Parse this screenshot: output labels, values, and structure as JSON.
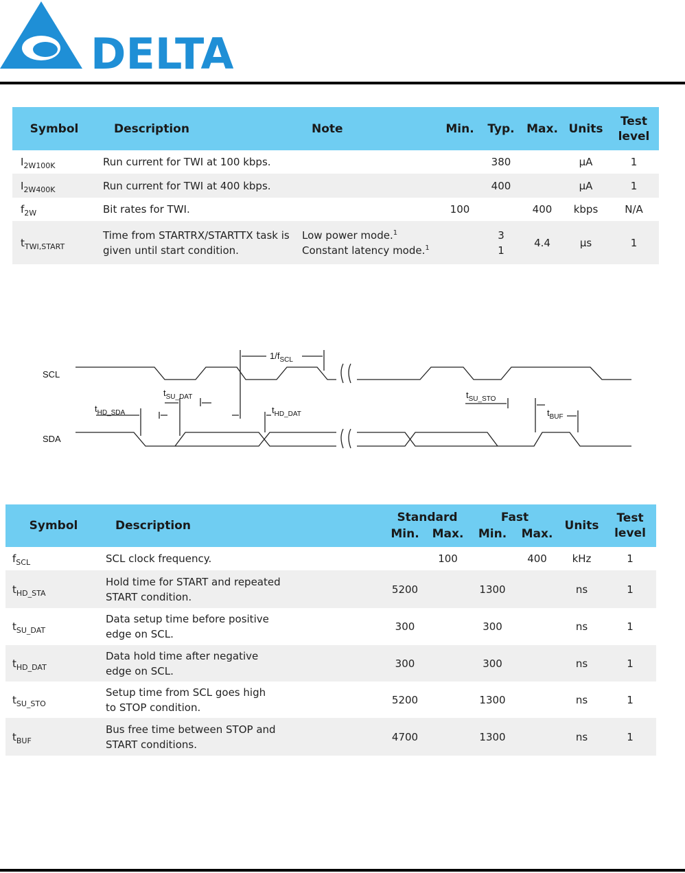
{
  "header": {
    "logo": "DELTA"
  },
  "table1": {
    "columns": [
      "Symbol",
      "Description",
      "Note",
      "Min.",
      "Typ.",
      "Max.",
      "Units",
      "Test level"
    ],
    "rows": [
      {
        "symbol": {
          "base": "I",
          "sub": "2W100K"
        },
        "description": "Run current for TWI at 100 kbps.",
        "typ": 380,
        "units": "µA",
        "test_level": 1
      },
      {
        "symbol": {
          "base": "I",
          "sub": "2W400K"
        },
        "description": "Run current for TWI at 400 kbps.",
        "typ": 400,
        "units": "µA",
        "test_level": 1
      },
      {
        "symbol": {
          "base": "f",
          "sub": "2W"
        },
        "description": "Bit rates for TWI.",
        "min": 100,
        "max": 400,
        "units": "kbps",
        "test_level": "N/A"
      },
      {
        "symbol": {
          "base": "t",
          "sub": "TWI,START"
        },
        "description": "Time from STARTRX/STARTTX task is given until start condition.",
        "note": [
          {
            "text": "Low power mode.",
            "sup": "1"
          },
          {
            "text": "Constant latency mode.",
            "sup": "1"
          }
        ],
        "typ": [
          3,
          1
        ],
        "max": 4.4,
        "units": "µs",
        "test_level": 1
      }
    ]
  },
  "diagram": {
    "scl": "SCL",
    "sda": "SDA",
    "labels": {
      "period": {
        "base": "1/f",
        "sub": "SCL"
      },
      "su_dat": {
        "base": "t",
        "sub": "SU_DAT"
      },
      "hd_sda": {
        "base": "t",
        "sub": "HD_SDA"
      },
      "hd_dat": {
        "base": "t",
        "sub": "HD_DAT"
      },
      "su_sto": {
        "base": "t",
        "sub": "SU_STO"
      },
      "buf": {
        "base": "t",
        "sub": "BUF"
      }
    }
  },
  "table2": {
    "columns": {
      "symbol": "Symbol",
      "description": "Description",
      "standard": "Standard",
      "fast": "Fast",
      "min": "Min.",
      "max": "Max.",
      "units": "Units",
      "test_level": "Test level"
    },
    "rows": [
      {
        "symbol": {
          "base": "f",
          "sub": "SCL"
        },
        "description": [
          "SCL clock frequency."
        ],
        "std_max": 100,
        "fast_max": 400,
        "units": "kHz",
        "test_level": 1
      },
      {
        "symbol": {
          "base": "t",
          "sub": "HD_STA"
        },
        "description": [
          "Hold time for START and repeated",
          "START condition."
        ],
        "std_min": 5200,
        "fast_min": 1300,
        "units": "ns",
        "test_level": 1
      },
      {
        "symbol": {
          "base": "t",
          "sub": "SU_DAT"
        },
        "description": [
          "Data setup time before positive",
          "edge on SCL."
        ],
        "std_min": 300,
        "fast_min": 300,
        "units": "ns",
        "test_level": 1
      },
      {
        "symbol": {
          "base": "t",
          "sub": "HD_DAT"
        },
        "description": [
          "Data hold time after negative",
          "edge on SCL."
        ],
        "std_min": 300,
        "fast_min": 300,
        "units": "ns",
        "test_level": 1
      },
      {
        "symbol": {
          "base": "t",
          "sub": "SU_STO"
        },
        "description": [
          "Setup time from SCL goes high",
          "to STOP condition."
        ],
        "std_min": 5200,
        "fast_min": 1300,
        "units": "ns",
        "test_level": 1
      },
      {
        "symbol": {
          "base": "t",
          "sub": "BUF"
        },
        "description": [
          "Bus free time between STOP and",
          "START conditions."
        ],
        "std_min": 4700,
        "fast_min": 1300,
        "units": "ns",
        "test_level": 1
      }
    ]
  }
}
